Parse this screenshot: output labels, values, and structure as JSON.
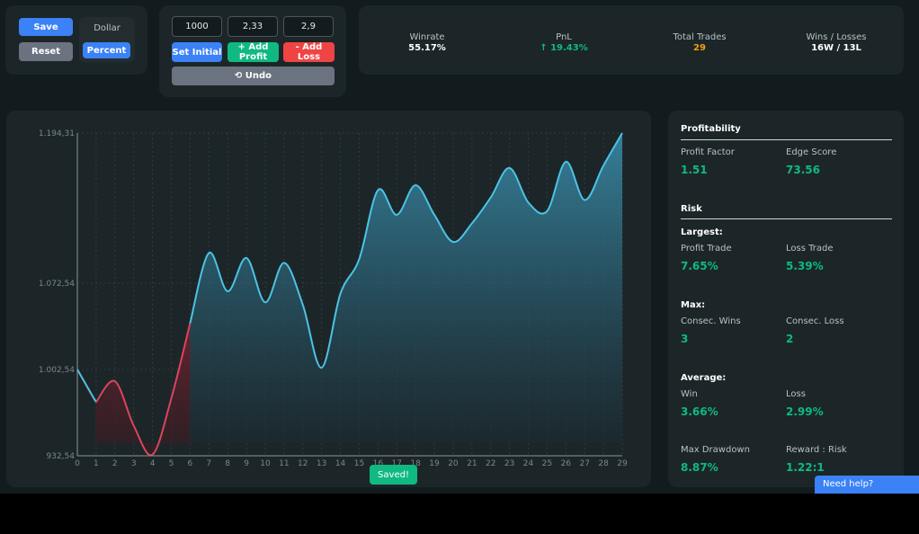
{
  "controls": {
    "save_label": "Save",
    "reset_label": "Reset",
    "dollar_label": "Dollar",
    "percent_label": "Percent"
  },
  "inputs": {
    "initial_value": "1000",
    "profit_value": "2,33",
    "loss_value": "2,9",
    "set_initial_label": "Set Initial",
    "add_profit_label": "+ Add Profit",
    "add_loss_label": "- Add Loss",
    "undo_label": "⟲ Undo"
  },
  "stats": [
    {
      "label": "Winrate",
      "value": "55.17%",
      "color": "#ffffff"
    },
    {
      "label": "PnL",
      "value": "↑ 19.43%",
      "color": "#10b981"
    },
    {
      "label": "Total Trades",
      "value": "29",
      "color": "#f59e0b"
    },
    {
      "label": "Wins / Losses",
      "value": "16W / 13L",
      "color": "#ffffff"
    }
  ],
  "sidebar": {
    "profitability_title": "Profitability",
    "profit_factor_label": "Profit Factor",
    "profit_factor_value": "1.51",
    "edge_score_label": "Edge Score",
    "edge_score_value": "73.56",
    "risk_title": "Risk",
    "largest_title": "Largest:",
    "profit_trade_label": "Profit Trade",
    "profit_trade_value": "7.65%",
    "loss_trade_label": "Loss Trade",
    "loss_trade_value": "5.39%",
    "max_title": "Max:",
    "consec_wins_label": "Consec. Wins",
    "consec_wins_value": "3",
    "consec_loss_label": "Consec. Loss",
    "consec_loss_value": "2",
    "average_title": "Average:",
    "avg_win_label": "Win",
    "avg_win_value": "3.66%",
    "avg_loss_label": "Loss",
    "avg_loss_value": "2.99%",
    "max_drawdown_label": "Max Drawdown",
    "max_drawdown_value": "8.87%",
    "reward_risk_label": "Reward : Risk",
    "reward_risk_value": "1.22:1"
  },
  "toast": "Saved!",
  "help_label": "Need help?",
  "colors": {
    "accent": "#3b82f6",
    "positive": "#10b981",
    "negative": "#ef4444",
    "line": "#4cc3e6",
    "loss_line": "#d9455f"
  },
  "chart_data": {
    "type": "area",
    "x": [
      0,
      1,
      2,
      3,
      4,
      5,
      6,
      7,
      8,
      9,
      10,
      11,
      12,
      13,
      14,
      15,
      16,
      17,
      18,
      19,
      20,
      21,
      22,
      23,
      24,
      25,
      26,
      27,
      28,
      29
    ],
    "values": [
      1002.54,
      976.0,
      993.0,
      957.0,
      933.5,
      979.0,
      1040.0,
      1097.0,
      1066.0,
      1093.0,
      1057.0,
      1089.0,
      1055.0,
      1004.0,
      1064.0,
      1092.0,
      1148.0,
      1128.0,
      1152.0,
      1128.0,
      1106.0,
      1121.0,
      1142.0,
      1166.0,
      1138.0,
      1131.0,
      1171.0,
      1140.0,
      1168.0,
      1194.31
    ],
    "loss_segment_end_index": 6,
    "y_ticks": [
      "932,54",
      "1.002,54",
      "1.072,54",
      "1.194,31"
    ],
    "y_tick_values": [
      932.54,
      1002.54,
      1072.54,
      1194.31
    ],
    "ylim": [
      932.54,
      1194.31
    ],
    "grid": true
  }
}
